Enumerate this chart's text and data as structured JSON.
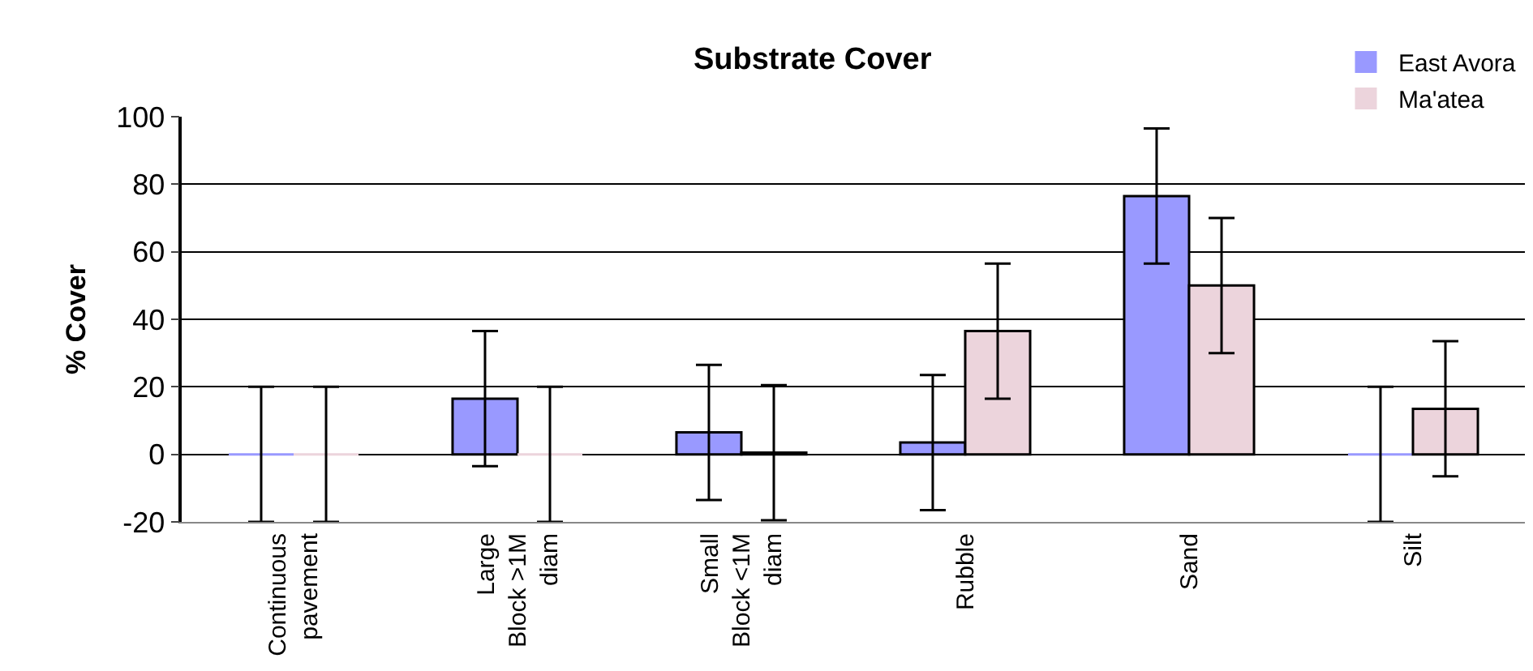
{
  "chart_data": {
    "type": "bar",
    "title": "Substrate Cover",
    "ylabel": "% Cover",
    "categories": [
      "Continuous pavement",
      "Large Block >1M diam",
      "Small Block <1M diam",
      "Rubble",
      "Sand",
      "Silt"
    ],
    "series": [
      {
        "name": "East Avora",
        "color": "#9999ff",
        "values": [
          0,
          16.5,
          6.5,
          3.5,
          76.5,
          0
        ],
        "errors": [
          20,
          20,
          20,
          20,
          20,
          20
        ]
      },
      {
        "name": "Ma'atea",
        "color": "#ecd4dc",
        "values": [
          0,
          0,
          0.5,
          36.5,
          50,
          13.5
        ],
        "errors": [
          20,
          20,
          20,
          20,
          20,
          20
        ]
      }
    ],
    "ylim": [
      -20,
      100
    ],
    "yticks": [
      -20,
      0,
      20,
      40,
      60,
      80,
      100
    ],
    "grid": "y",
    "legend": "top right"
  }
}
